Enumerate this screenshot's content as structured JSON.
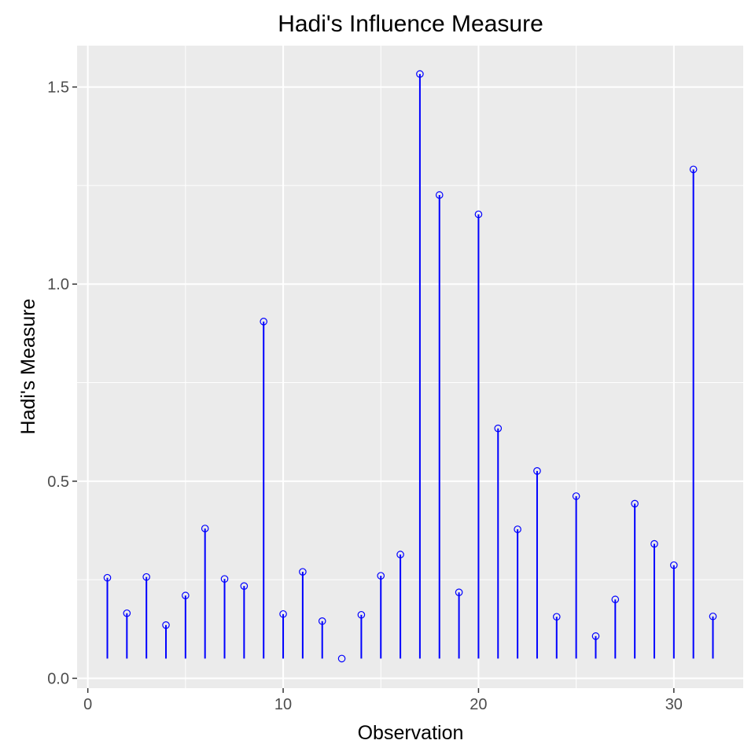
{
  "chart_data": {
    "type": "scatter",
    "style": "lollipop",
    "title": "Hadi's Influence Measure",
    "xlabel": "Observation",
    "ylabel": "Hadi's Measure",
    "xlim": [
      -0.55,
      33.55
    ],
    "ylim": [
      -0.025,
      1.605
    ],
    "xticks": [
      0,
      10,
      20,
      30
    ],
    "xtick_labels": [
      "0",
      "10",
      "20",
      "30"
    ],
    "yticks": [
      0.0,
      0.5,
      1.0,
      1.5
    ],
    "ytick_labels": [
      "0.0",
      "0.5",
      "1.0",
      "1.5"
    ],
    "baseline": 0.05,
    "grid": true,
    "colors": {
      "stem": "#0000ff",
      "point": "#0000ff",
      "panel": "#ebebeb",
      "grid": "#ffffff"
    },
    "x": [
      1,
      2,
      3,
      4,
      5,
      6,
      7,
      8,
      9,
      10,
      11,
      12,
      13,
      14,
      15,
      16,
      17,
      18,
      19,
      20,
      21,
      22,
      23,
      24,
      25,
      26,
      27,
      28,
      29,
      30,
      31,
      32
    ],
    "y": [
      0.255,
      0.165,
      0.257,
      0.135,
      0.21,
      0.38,
      0.252,
      0.234,
      0.905,
      0.163,
      0.27,
      0.145,
      0.05,
      0.161,
      0.26,
      0.314,
      1.533,
      1.226,
      0.218,
      1.177,
      0.634,
      0.378,
      0.526,
      0.156,
      0.462,
      0.107,
      0.2,
      0.443,
      0.341,
      0.287,
      1.291,
      0.157
    ]
  }
}
